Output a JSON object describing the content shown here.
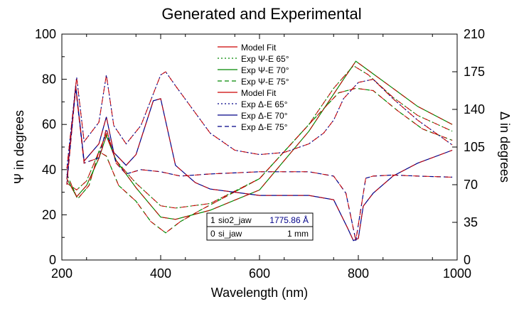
{
  "chart_data": {
    "type": "line",
    "title": "Generated and Experimental",
    "xlabel": "Wavelength (nm)",
    "ylabel_left": "Ψ in degrees",
    "ylabel_right": "Δ in degrees",
    "xlim": [
      200,
      1000
    ],
    "ylim_left": [
      0,
      100
    ],
    "ylim_right": [
      0,
      210
    ],
    "x_ticks": [
      "200",
      "400",
      "600",
      "800",
      "1000"
    ],
    "y_ticks_left": [
      "0",
      "20",
      "40",
      "60",
      "80",
      "100"
    ],
    "y_ticks_right": [
      "0",
      "35",
      "70",
      "105",
      "140",
      "175",
      "210"
    ],
    "grid": false,
    "legend_position": "top-center",
    "legend": [
      {
        "label": "Model Fit",
        "color": "#cc0000",
        "dash": "solid"
      },
      {
        "label": "Exp Ψ-E 65°",
        "color": "#008800",
        "dash": "dotted"
      },
      {
        "label": "Exp Ψ-E 70°",
        "color": "#008800",
        "dash": "solid"
      },
      {
        "label": "Exp Ψ-E 75°",
        "color": "#008800",
        "dash": "dashed"
      },
      {
        "label": "Model Fit",
        "color": "#cc0000",
        "dash": "solid"
      },
      {
        "label": "Exp Δ-E 65°",
        "color": "#000088",
        "dash": "dotted"
      },
      {
        "label": "Exp Δ-E 70°",
        "color": "#000088",
        "dash": "solid"
      },
      {
        "label": "Exp Δ-E 75°",
        "color": "#000088",
        "dash": "dashed"
      }
    ],
    "model_table": [
      {
        "layer": "1",
        "material": "sio2_jaw",
        "thickness": "1775.86 Å"
      },
      {
        "layer": "0",
        "material": "si_jaw",
        "thickness": "1 mm"
      }
    ],
    "series": [
      {
        "axis": "left",
        "group": "psi",
        "angle": "65°",
        "x": [
          210,
          230,
          250,
          275,
          290,
          310,
          350,
          400,
          430,
          500,
          600,
          700,
          750,
          790,
          820,
          870,
          920,
          990
        ],
        "values": [
          34,
          31,
          35,
          48,
          56,
          44,
          34,
          24,
          23,
          25,
          36,
          60,
          76,
          86,
          82,
          72,
          64,
          57
        ]
      },
      {
        "axis": "left",
        "group": "psi",
        "angle": "70°",
        "x": [
          210,
          230,
          250,
          275,
          290,
          310,
          350,
          400,
          430,
          500,
          600,
          700,
          770,
          795,
          820,
          870,
          920,
          990
        ],
        "values": [
          36,
          28,
          33,
          45,
          55,
          44,
          32,
          19,
          18,
          22,
          31,
          57,
          80,
          88,
          84,
          76,
          68,
          60
        ]
      },
      {
        "axis": "left",
        "group": "psi",
        "angle": "75°",
        "x": [
          210,
          232,
          255,
          275,
          290,
          315,
          350,
          380,
          410,
          440,
          480,
          600,
          700,
          760,
          795,
          830,
          880,
          930,
          990
        ],
        "values": [
          38,
          27,
          33,
          48,
          46,
          33,
          26,
          17,
          12,
          17,
          22,
          36,
          60,
          74,
          76,
          75,
          66,
          58,
          53
        ]
      },
      {
        "axis": "right",
        "group": "delta",
        "angle": "65°",
        "x": [
          210,
          230,
          245,
          275,
          290,
          305,
          330,
          360,
          400,
          410,
          430,
          500,
          550,
          600,
          650,
          700,
          730,
          750,
          770,
          800,
          830,
          870,
          920,
          990
        ],
        "values": [
          85,
          170,
          110,
          128,
          172,
          125,
          108,
          125,
          172,
          175,
          162,
          118,
          102,
          98,
          100,
          108,
          118,
          130,
          150,
          165,
          168,
          150,
          130,
          107
        ]
      },
      {
        "axis": "right",
        "group": "delta",
        "angle": "70°",
        "x": [
          210,
          228,
          245,
          275,
          290,
          305,
          330,
          350,
          385,
          400,
          430,
          470,
          500,
          600,
          700,
          750,
          778,
          790,
          800,
          810,
          830,
          870,
          920,
          990
        ],
        "values": [
          75,
          162,
          92,
          108,
          133,
          100,
          88,
          98,
          148,
          150,
          88,
          72,
          66,
          60,
          60,
          56,
          30,
          18,
          20,
          50,
          62,
          78,
          90,
          102
        ]
      },
      {
        "axis": "right",
        "group": "delta",
        "angle": "75°",
        "x": [
          210,
          228,
          245,
          275,
          290,
          310,
          330,
          360,
          400,
          440,
          500,
          600,
          700,
          750,
          775,
          795,
          815,
          830,
          870,
          920,
          990
        ],
        "values": [
          70,
          160,
          90,
          95,
          122,
          90,
          80,
          84,
          82,
          78,
          80,
          82,
          82,
          78,
          62,
          18,
          76,
          78,
          79,
          78,
          77
        ]
      }
    ]
  }
}
